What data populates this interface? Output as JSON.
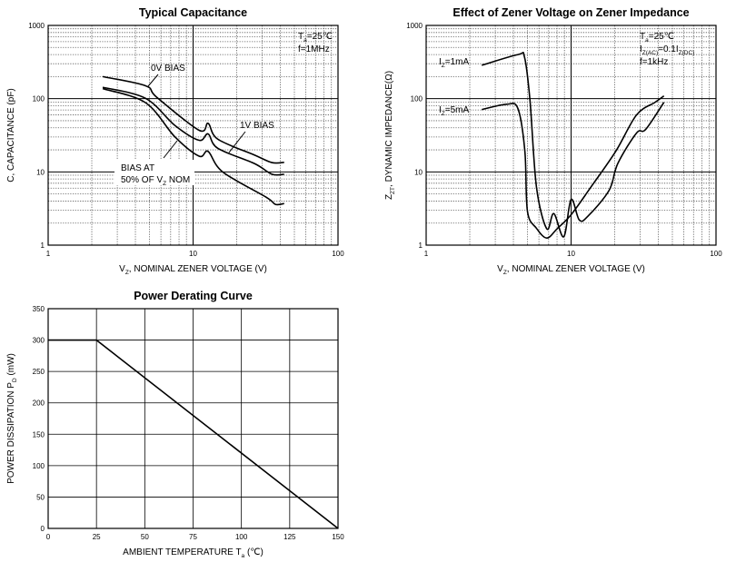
{
  "chart_data": [
    {
      "type": "line",
      "title": "Typical Capacitance",
      "xscale": "log",
      "yscale": "log",
      "xlim": [
        1,
        100
      ],
      "ylim": [
        1,
        1000
      ],
      "xticks": [
        "1",
        "10",
        "100"
      ],
      "yticks": [
        "1",
        "10",
        "100",
        "1000"
      ],
      "xlabel": [
        "V",
        "Z",
        ", NOMINAL ZENER VOLTAGE (V)"
      ],
      "ylabel": [
        "C, CAPACITANCE (pF)"
      ],
      "grid": true,
      "annotations": [
        [
          "T",
          "a",
          "=25℃"
        ],
        [
          "f=1MHz"
        ]
      ],
      "series": [
        {
          "name": "0V BIAS",
          "x": [
            2.38,
            4.7,
            5.6,
            11,
            12.7,
            14.8,
            26.5,
            35,
            42.5
          ],
          "y": [
            200,
            150,
            105,
            37,
            46,
            28,
            17,
            13.4,
            13.5
          ]
        },
        {
          "name": "1V BIAS",
          "x": [
            2.38,
            4.7,
            7.5,
            11,
            12.7,
            14.8,
            26.5,
            35,
            42.5
          ],
          "y": [
            143,
            101,
            43,
            27,
            33,
            21,
            13,
            9.3,
            9.3
          ]
        },
        {
          "name": "BIAS AT 50% OF VZ NOM",
          "x": [
            2.38,
            4.7,
            7.5,
            11,
            12.7,
            16,
            32,
            37,
            42.5
          ],
          "y": [
            137,
            88,
            30,
            16.4,
            19,
            10,
            4.5,
            3.6,
            3.7
          ]
        }
      ],
      "labels": {
        "zero_bias": [
          "0V BIAS"
        ],
        "one_bias": [
          "1V BIAS"
        ],
        "half_bias_1": [
          "BIAS AT"
        ],
        "half_bias_2": [
          "50% OF V",
          "Z",
          " NOM"
        ]
      }
    },
    {
      "type": "line",
      "title": "Effect of Zener Voltage on Zener Impedance",
      "xscale": "log",
      "yscale": "log",
      "xlim": [
        1,
        100
      ],
      "ylim": [
        1,
        1000
      ],
      "xticks": [
        "1",
        "10",
        "100"
      ],
      "yticks": [
        "1",
        "10",
        "100",
        "1000"
      ],
      "xlabel": [
        "V",
        "Z",
        ", NOMINAL ZENER VOLTAGE (V)"
      ],
      "ylabel": [
        "Z",
        "ZT",
        ", DYNAMIC IMPEDANCE(Ω)"
      ],
      "grid": true,
      "annotations": [
        [
          "T",
          "a",
          "=25℃"
        ],
        [
          "I",
          "Z(AC)",
          "=0.1I",
          "Z(DC)"
        ],
        [
          "f=1kHz"
        ]
      ],
      "series": [
        {
          "name": "IZ=1mA",
          "x": [
            2.42,
            4.3,
            4.77,
            5.2,
            5.77,
            6.8,
            7.6,
            8.9,
            10,
            11.4,
            13.1,
            18.3,
            21,
            28.3,
            32.7,
            43.7
          ],
          "y": [
            286,
            400,
            370,
            97,
            6.2,
            1.67,
            2.7,
            1.3,
            4.2,
            2.2,
            2.5,
            5.6,
            13,
            34,
            38,
            89
          ]
        },
        {
          "name": "IZ=5mA",
          "x": [
            2.42,
            3.6,
            4.3,
            4.8,
            5.0,
            5.77,
            6.8,
            8,
            10,
            13.7,
            20.3,
            28.3,
            37.9,
            43.7
          ],
          "y": [
            71,
            84,
            73,
            19,
            2.9,
            1.7,
            1.25,
            1.67,
            2.6,
            6.2,
            19,
            60,
            89,
            109
          ]
        }
      ],
      "labels": {
        "iz1": [
          "I",
          "Z",
          "=1mA"
        ],
        "iz5": [
          "I",
          "Z",
          "=5mA"
        ]
      }
    },
    {
      "type": "line",
      "title": "Power Derating Curve",
      "xscale": "linear",
      "yscale": "linear",
      "xlim": [
        0,
        150
      ],
      "ylim": [
        0,
        350
      ],
      "xticks": [
        "0",
        "25",
        "50",
        "75",
        "100",
        "125",
        "150"
      ],
      "yticks": [
        "0",
        "50",
        "100",
        "150",
        "200",
        "250",
        "300",
        "350"
      ],
      "xlabel": [
        "AMBIENT TEMPERATURE    T",
        "a",
        "   (℃)"
      ],
      "ylabel": [
        "POWER DISSIPATION    P",
        "D",
        "   (mW)"
      ],
      "grid": true,
      "series": [
        {
          "name": "PD",
          "x": [
            0,
            25,
            150
          ],
          "y": [
            300,
            300,
            0
          ]
        }
      ]
    }
  ]
}
